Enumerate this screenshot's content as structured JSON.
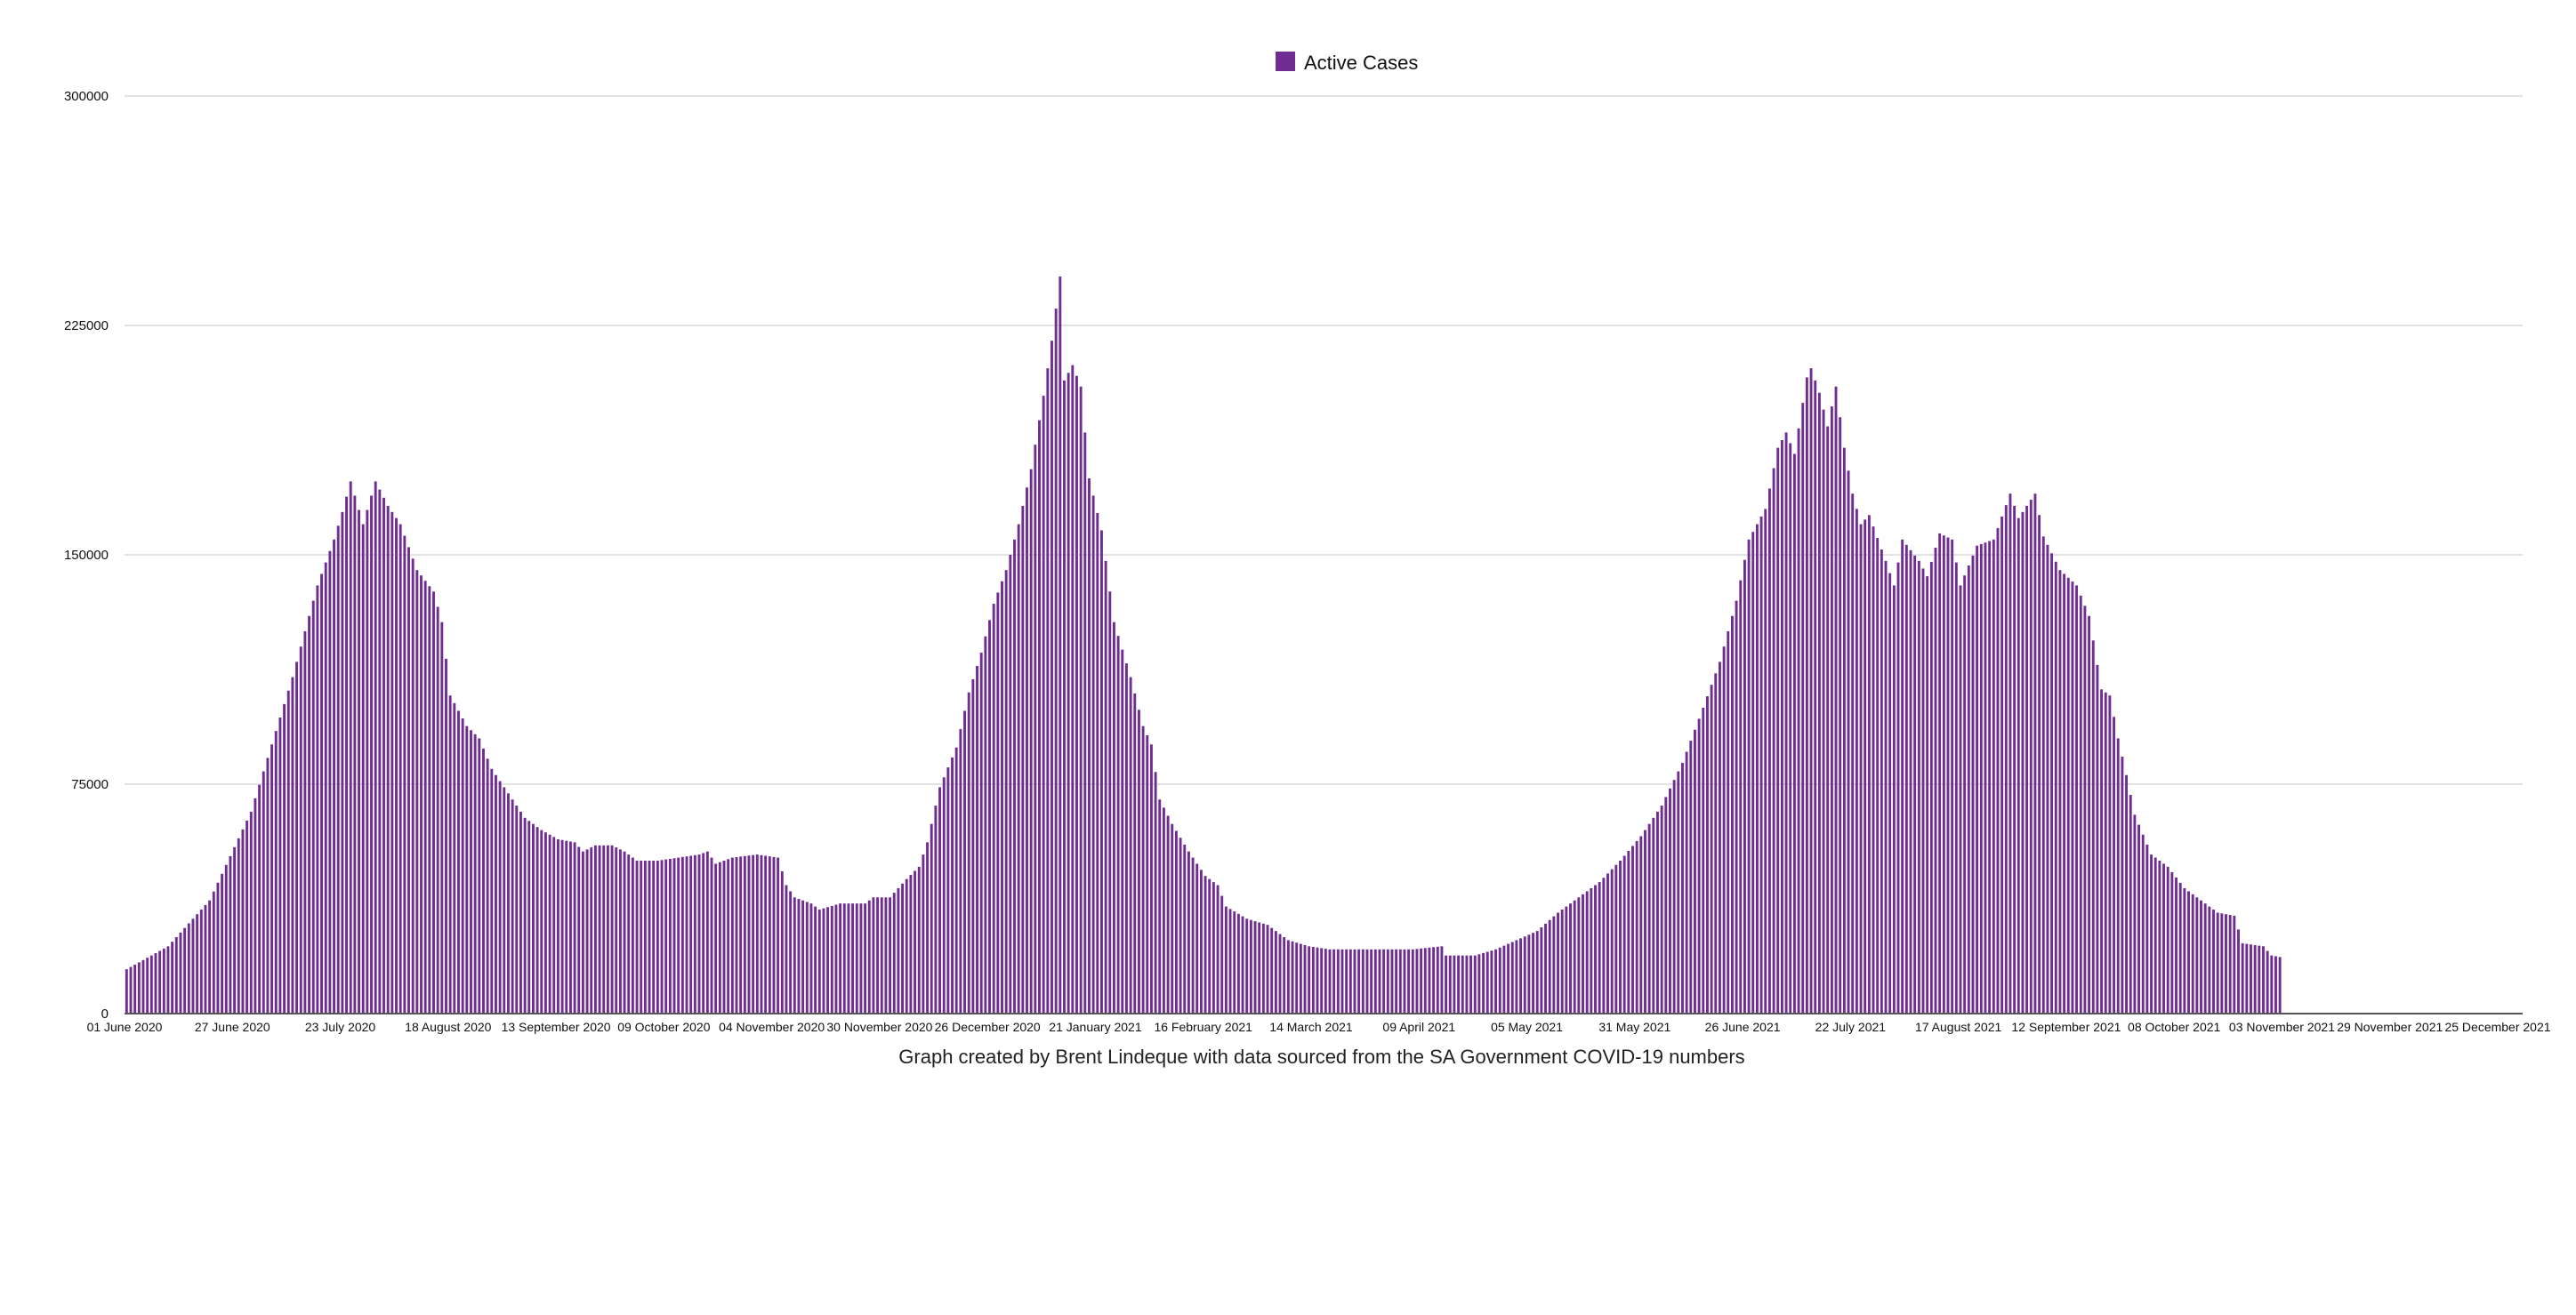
{
  "chart_data": {
    "type": "bar",
    "title": "",
    "legend": {
      "position": "top-center",
      "entries": [
        {
          "name": "Active Cases",
          "color": "#6f2c91"
        }
      ]
    },
    "series": [
      {
        "name": "Active Cases",
        "color": "#6f2c91"
      }
    ],
    "ylim": [
      0,
      300000
    ],
    "yticks": [
      0,
      75000,
      150000,
      225000,
      300000
    ],
    "ytick_labels": [
      "0",
      "75000",
      "150000",
      "225000",
      "300000"
    ],
    "grid": true,
    "x_start_date": "2020-06-01",
    "x_end_date": "2021-12-31",
    "x_tick_labels": [
      "01 June 2020",
      "27 June 2020",
      "23 July 2020",
      "18 August 2020",
      "13 September 2020",
      "09 October 2020",
      "04 November 2020",
      "30 November 2020",
      "26 December 2020",
      "21 January 2021",
      "16 February 2021",
      "14 March 2021",
      "09 April 2021",
      "05 May 2021",
      "31 May 2021",
      "26 June 2021",
      "22 July 2021",
      "17 August 2021",
      "12 September 2021",
      "08 October 2021",
      "03 November 2021",
      "29 November 2021",
      "25 December 2021"
    ],
    "x_tick_interval_days": 26,
    "key_points_day_value": [
      [
        0,
        14500
      ],
      [
        10,
        22000
      ],
      [
        20,
        37000
      ],
      [
        30,
        66000
      ],
      [
        40,
        110000
      ],
      [
        46,
        140000
      ],
      [
        50,
        155000
      ],
      [
        52,
        164000
      ],
      [
        54,
        174000
      ],
      [
        57,
        160000
      ],
      [
        60,
        174000
      ],
      [
        63,
        166000
      ],
      [
        66,
        160000
      ],
      [
        70,
        145000
      ],
      [
        74,
        138000
      ],
      [
        76,
        128000
      ],
      [
        78,
        104000
      ],
      [
        82,
        94000
      ],
      [
        85,
        90000
      ],
      [
        88,
        80000
      ],
      [
        92,
        72000
      ],
      [
        96,
        64000
      ],
      [
        100,
        60000
      ],
      [
        104,
        57000
      ],
      [
        108,
        56000
      ],
      [
        110,
        53000
      ],
      [
        113,
        55000
      ],
      [
        117,
        55000
      ],
      [
        120,
        53000
      ],
      [
        123,
        50000
      ],
      [
        128,
        50000
      ],
      [
        133,
        51000
      ],
      [
        138,
        52000
      ],
      [
        140,
        53000
      ],
      [
        142,
        49000
      ],
      [
        146,
        51000
      ],
      [
        152,
        52000
      ],
      [
        157,
        51000
      ],
      [
        159,
        42000
      ],
      [
        161,
        38000
      ],
      [
        165,
        36000
      ],
      [
        167,
        34000
      ],
      [
        172,
        36000
      ],
      [
        178,
        36000
      ],
      [
        180,
        38000
      ],
      [
        184,
        38000
      ],
      [
        188,
        44000
      ],
      [
        191,
        48000
      ],
      [
        193,
        56000
      ],
      [
        196,
        74000
      ],
      [
        200,
        87000
      ],
      [
        203,
        105000
      ],
      [
        206,
        118000
      ],
      [
        209,
        134000
      ],
      [
        212,
        145000
      ],
      [
        215,
        160000
      ],
      [
        218,
        178000
      ],
      [
        221,
        202000
      ],
      [
        223,
        220000
      ],
      [
        225,
        241000
      ],
      [
        226,
        207000
      ],
      [
        228,
        212000
      ],
      [
        230,
        205000
      ],
      [
        232,
        175000
      ],
      [
        235,
        158000
      ],
      [
        238,
        128000
      ],
      [
        242,
        110000
      ],
      [
        245,
        94000
      ],
      [
        247,
        88000
      ],
      [
        249,
        70000
      ],
      [
        252,
        62000
      ],
      [
        256,
        53000
      ],
      [
        260,
        45000
      ],
      [
        263,
        42000
      ],
      [
        265,
        35000
      ],
      [
        270,
        31000
      ],
      [
        275,
        29000
      ],
      [
        280,
        24000
      ],
      [
        285,
        22000
      ],
      [
        290,
        21000
      ],
      [
        300,
        21000
      ],
      [
        310,
        21000
      ],
      [
        317,
        22000
      ],
      [
        318,
        19000
      ],
      [
        325,
        19000
      ],
      [
        330,
        21000
      ],
      [
        335,
        24000
      ],
      [
        340,
        27000
      ],
      [
        345,
        33000
      ],
      [
        350,
        38000
      ],
      [
        355,
        43000
      ],
      [
        360,
        50000
      ],
      [
        365,
        58000
      ],
      [
        370,
        68000
      ],
      [
        375,
        82000
      ],
      [
        380,
        100000
      ],
      [
        384,
        115000
      ],
      [
        388,
        135000
      ],
      [
        391,
        155000
      ],
      [
        395,
        165000
      ],
      [
        398,
        185000
      ],
      [
        400,
        190000
      ],
      [
        402,
        183000
      ],
      [
        405,
        208000
      ],
      [
        406,
        211000
      ],
      [
        408,
        203000
      ],
      [
        410,
        192000
      ],
      [
        412,
        205000
      ],
      [
        414,
        185000
      ],
      [
        416,
        170000
      ],
      [
        418,
        160000
      ],
      [
        420,
        163000
      ],
      [
        424,
        148000
      ],
      [
        426,
        140000
      ],
      [
        428,
        155000
      ],
      [
        432,
        148000
      ],
      [
        434,
        143000
      ],
      [
        437,
        157000
      ],
      [
        440,
        155000
      ],
      [
        442,
        140000
      ],
      [
        446,
        153000
      ],
      [
        450,
        155000
      ],
      [
        454,
        170000
      ],
      [
        456,
        162000
      ],
      [
        460,
        170000
      ],
      [
        462,
        156000
      ],
      [
        466,
        145000
      ],
      [
        470,
        140000
      ],
      [
        473,
        130000
      ],
      [
        474,
        122000
      ],
      [
        476,
        106000
      ],
      [
        478,
        104000
      ],
      [
        480,
        90000
      ],
      [
        482,
        78000
      ],
      [
        484,
        65000
      ],
      [
        488,
        52000
      ],
      [
        492,
        48000
      ],
      [
        496,
        41000
      ],
      [
        500,
        37000
      ],
      [
        504,
        33000
      ],
      [
        508,
        32000
      ],
      [
        510,
        23000
      ],
      [
        515,
        22000
      ],
      [
        517,
        19000
      ],
      [
        519,
        18500
      ]
    ]
  },
  "caption": "Graph created by Brent Lindeque with data sourced from the SA Government COVID-19 numbers"
}
